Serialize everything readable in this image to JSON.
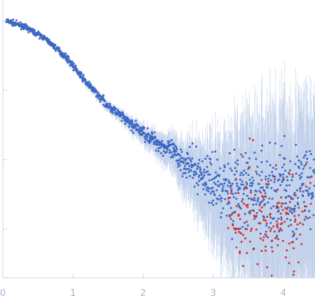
{
  "chart_data": {
    "type": "scatter",
    "title": "",
    "xlabel": "",
    "ylabel": "",
    "x_ticks": [
      0,
      1,
      2,
      3,
      4
    ],
    "x_tick_labels": [
      "0",
      "1",
      "2",
      "3",
      "4"
    ],
    "xlim": [
      0,
      4.45
    ],
    "y_scale": "log",
    "ylim": [
      -3.7,
      0.3
    ],
    "grid": false,
    "legend": "none",
    "axis_color": "#c5d3ea",
    "tick_label_color": "#a4b6d8",
    "series": [
      {
        "color": "#3d67c1",
        "error_bar_color": "#b8cbe8",
        "x": [
          0.05,
          0.3,
          0.6,
          0.9,
          1.2,
          1.5,
          1.8,
          2.1,
          2.4,
          2.7,
          3.0,
          3.3,
          3.6,
          3.9,
          4.2,
          4.45
        ],
        "y": [
          0.0,
          -0.08,
          -0.25,
          -0.52,
          -0.9,
          -1.22,
          -1.47,
          -1.68,
          -1.88,
          -2.12,
          -2.32,
          -2.44,
          -2.5,
          -2.47,
          -2.43,
          -2.4
        ],
        "y_err": [
          0.02,
          0.02,
          0.02,
          0.03,
          0.04,
          0.05,
          0.08,
          0.12,
          0.2,
          0.35,
          0.55,
          0.8,
          1.0,
          1.1,
          1.1,
          1.1
        ]
      },
      {
        "color": "#d0332b",
        "x": [
          3.2,
          3.4,
          3.6,
          3.8,
          4.0,
          4.2,
          4.4
        ],
        "y": [
          -2.8,
          -2.9,
          -2.75,
          -3.0,
          -2.8,
          -2.9,
          -2.75
        ],
        "spread": 0.7
      }
    ]
  }
}
